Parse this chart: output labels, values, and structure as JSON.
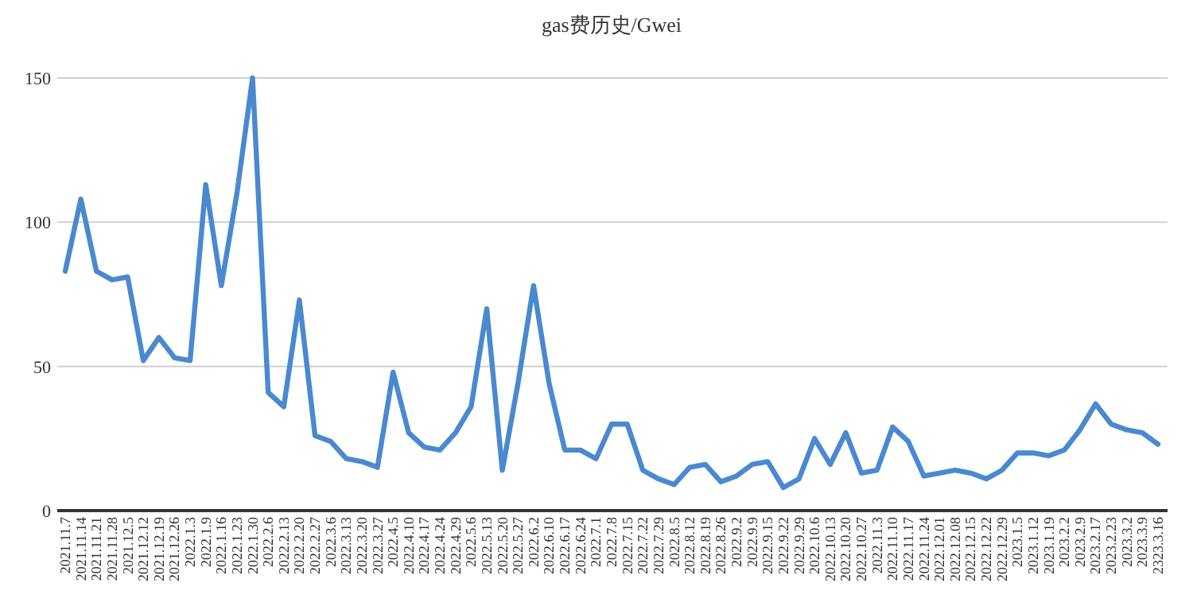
{
  "chart_data": {
    "type": "line",
    "title": "gas费历史/Gwei",
    "categories": [
      "2021.11.7",
      "2021.11.14",
      "2021.11.21",
      "2021.11.28",
      "2021.12.5",
      "2021.12.12",
      "2021.12.19",
      "2021.12.26",
      "2022.1.3",
      "2022.1.9",
      "2022.1.16",
      "2022.1.23",
      "2022.1.30",
      "2022.2.6",
      "2022.2.13",
      "2022.2.20",
      "2022.2.27",
      "2022.3.6",
      "2022.3.13",
      "2022.3.20",
      "2022.3.27",
      "2022.4.5",
      "2022.4.10",
      "2022.4.17",
      "2022.4.24",
      "2022.4.29",
      "2022.5.6",
      "2022.5.13",
      "2022.5.20",
      "2022.5.27",
      "2022.6.2",
      "2022.6.10",
      "2022.6.17",
      "2022.6.24",
      "2022.7.1",
      "2022.7.8",
      "2022.7.15",
      "2022.7.22",
      "2022.7.29",
      "2022.8.5",
      "2022.8.12",
      "2022.8.19",
      "2022.8.26",
      "2022.9.2",
      "2022.9.9",
      "2022.9.15",
      "2022.9.22",
      "2022.9.29",
      "2022.10.6",
      "2022.10.13",
      "2022.10.20",
      "2022.10.27",
      "2022.11.3",
      "2022.11.10",
      "2022.11.17",
      "2022.11.24",
      "2022.12.01",
      "2022.12.08",
      "2022.12.15",
      "2022.12.22",
      "2022.12.29",
      "2023.1.5",
      "2023.1.12",
      "2023.1.19",
      "2023.2.2",
      "2023.2.9",
      "2023.2.17",
      "2023.2.23",
      "2023.3.2",
      "2023.3.9",
      "2323.3.16"
    ],
    "series": [
      {
        "color": "#4a89d0",
        "values": [
          83,
          108,
          83,
          80,
          81,
          52,
          60,
          53,
          52,
          113,
          78,
          110,
          150,
          41,
          36,
          73,
          26,
          24,
          18,
          17,
          15,
          48,
          27,
          22,
          21,
          27,
          36,
          70,
          14,
          44,
          78,
          44,
          21,
          21,
          18,
          30,
          30,
          14,
          11,
          9,
          15,
          16,
          10,
          12,
          16,
          17,
          8,
          11,
          25,
          16,
          27,
          13,
          14,
          29,
          24,
          12,
          13,
          14,
          13,
          11,
          14,
          20,
          20,
          19,
          21,
          28,
          37,
          30,
          28,
          27,
          23
        ]
      }
    ],
    "ylim": [
      0,
      150
    ],
    "yticks": [
      0,
      50,
      100,
      150
    ],
    "grid": "y"
  }
}
